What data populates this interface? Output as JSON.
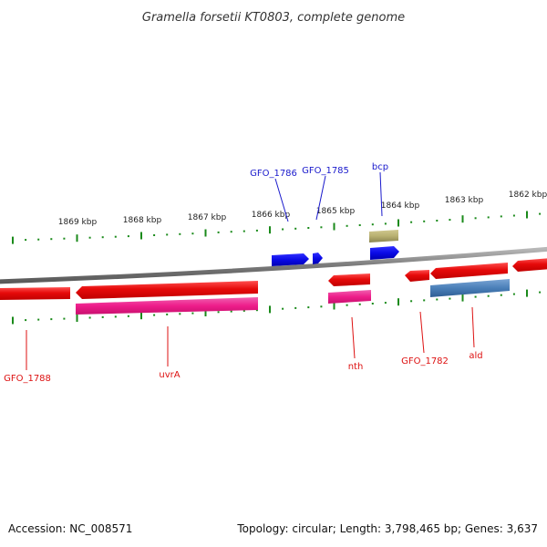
{
  "title": "Gramella forsetii KT0803, complete genome",
  "footer": {
    "accession": "Accession: NC_008571",
    "summary": "Topology: circular; Length: 3,798,465 bp; Genes: 3,637"
  },
  "ticks": [
    "1869 kbp",
    "1868 kbp",
    "1867 kbp",
    "1866 kbp",
    "1865 kbp",
    "1864 kbp",
    "1863 kbp",
    "1862 kbp"
  ],
  "genes_top": [
    "GFO_1786",
    "GFO_1785",
    "bcp"
  ],
  "genes_bottom": [
    "GFO_1788",
    "uvrA",
    "nth",
    "GFO_1782",
    "ald"
  ],
  "colors": {
    "forward_cds": "#0a0ae6",
    "reverse_cds": "#e60a0a",
    "rna_gene": "#ee1d8a",
    "feature_olive": "#b8b070",
    "feature_steelblue": "#4a7fb8",
    "ruler": "#1a8a1a",
    "backbone": "#8a8a8a"
  }
}
